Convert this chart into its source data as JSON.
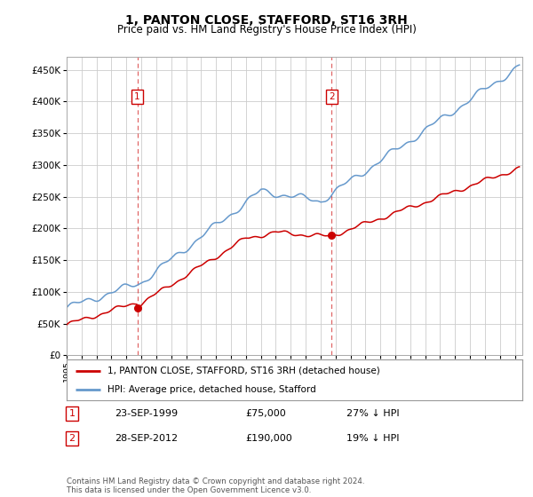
{
  "title": "1, PANTON CLOSE, STAFFORD, ST16 3RH",
  "subtitle": "Price paid vs. HM Land Registry's House Price Index (HPI)",
  "ytick_values": [
    0,
    50000,
    100000,
    150000,
    200000,
    250000,
    300000,
    350000,
    400000,
    450000
  ],
  "ylim": [
    0,
    470000
  ],
  "xlim_start": 1995.0,
  "xlim_end": 2025.5,
  "sale1_date": 1999.73,
  "sale1_price": 75000,
  "sale1_label": "1",
  "sale2_date": 2012.74,
  "sale2_price": 190000,
  "sale2_label": "2",
  "red_color": "#cc0000",
  "blue_color": "#6699cc",
  "dashed_color": "#cc0000",
  "legend_red_label": "1, PANTON CLOSE, STAFFORD, ST16 3RH (detached house)",
  "legend_blue_label": "HPI: Average price, detached house, Stafford",
  "table_row1": [
    "1",
    "23-SEP-1999",
    "£75,000",
    "27% ↓ HPI"
  ],
  "table_row2": [
    "2",
    "28-SEP-2012",
    "£190,000",
    "19% ↓ HPI"
  ],
  "footer": "Contains HM Land Registry data © Crown copyright and database right 2024.\nThis data is licensed under the Open Government Licence v3.0.",
  "background_color": "#ffffff",
  "grid_color": "#cccccc",
  "title_fontsize": 10,
  "subtitle_fontsize": 8.5
}
